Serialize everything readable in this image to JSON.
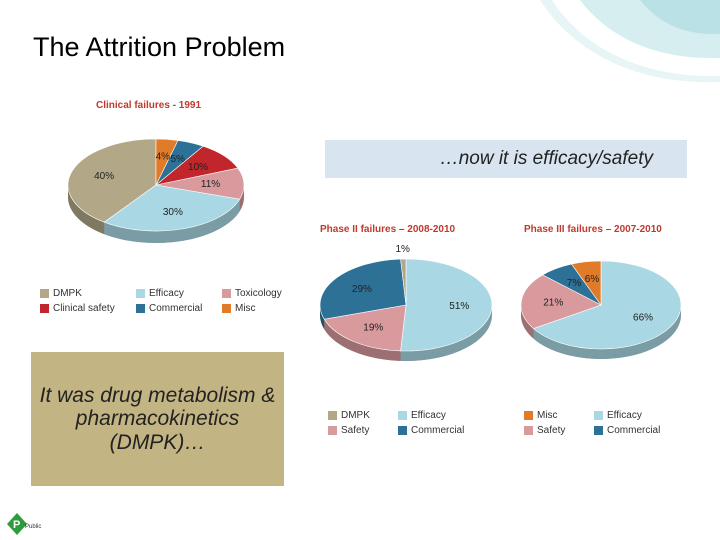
{
  "slide": {
    "title": "The Attrition Problem",
    "callout_top": "…now it is efficacy/safety",
    "callout_left": "It was drug metabolism & pharmacokinetics (DMPK)…",
    "footer_label": "Public"
  },
  "colors": {
    "DMPK": "#b2a787",
    "Efficacy": "#a9d8e4",
    "Toxicology": "#d99a9e",
    "Clinical safety": "#c0262b",
    "Commercial": "#2e7197",
    "Misc": "#e07b2a",
    "Safety": "#d99a9e",
    "accent_green": "#2e9c3c"
  },
  "chart_data": [
    {
      "type": "pie",
      "title": "Clinical failures - 1991",
      "slices": [
        {
          "label": "DMPK",
          "value": 40,
          "display": "40%"
        },
        {
          "label": "Efficacy",
          "value": 30,
          "display": "30%"
        },
        {
          "label": "Toxicology",
          "value": 11,
          "display": "11%"
        },
        {
          "label": "Clinical safety",
          "value": 10,
          "display": "10%"
        },
        {
          "label": "Commercial",
          "value": 5,
          "display": "5%"
        },
        {
          "label": "Misc",
          "value": 4,
          "display": "4%"
        }
      ],
      "legend": [
        "DMPK",
        "Efficacy",
        "Toxicology",
        "Clinical safety",
        "Commercial",
        "Misc"
      ]
    },
    {
      "type": "pie",
      "title": "Phase II failures – 2008-2010",
      "slices": [
        {
          "label": "Efficacy",
          "value": 51,
          "display": "51%"
        },
        {
          "label": "Safety",
          "value": 19,
          "display": "19%"
        },
        {
          "label": "Commercial",
          "value": 29,
          "display": "29%"
        },
        {
          "label": "DMPK",
          "value": 1,
          "display": "1%"
        }
      ],
      "legend": [
        "DMPK",
        "Efficacy",
        "Safety",
        "Commercial"
      ]
    },
    {
      "type": "pie",
      "title": "Phase III failures – 2007-2010",
      "slices": [
        {
          "label": "Efficacy",
          "value": 66,
          "display": "66%"
        },
        {
          "label": "Safety",
          "value": 21,
          "display": "21%"
        },
        {
          "label": "Commercial",
          "value": 7,
          "display": "7%"
        },
        {
          "label": "Misc",
          "value": 6,
          "display": "6%"
        }
      ],
      "legend": [
        "Misc",
        "Efficacy",
        "Safety",
        "Commercial"
      ]
    }
  ]
}
